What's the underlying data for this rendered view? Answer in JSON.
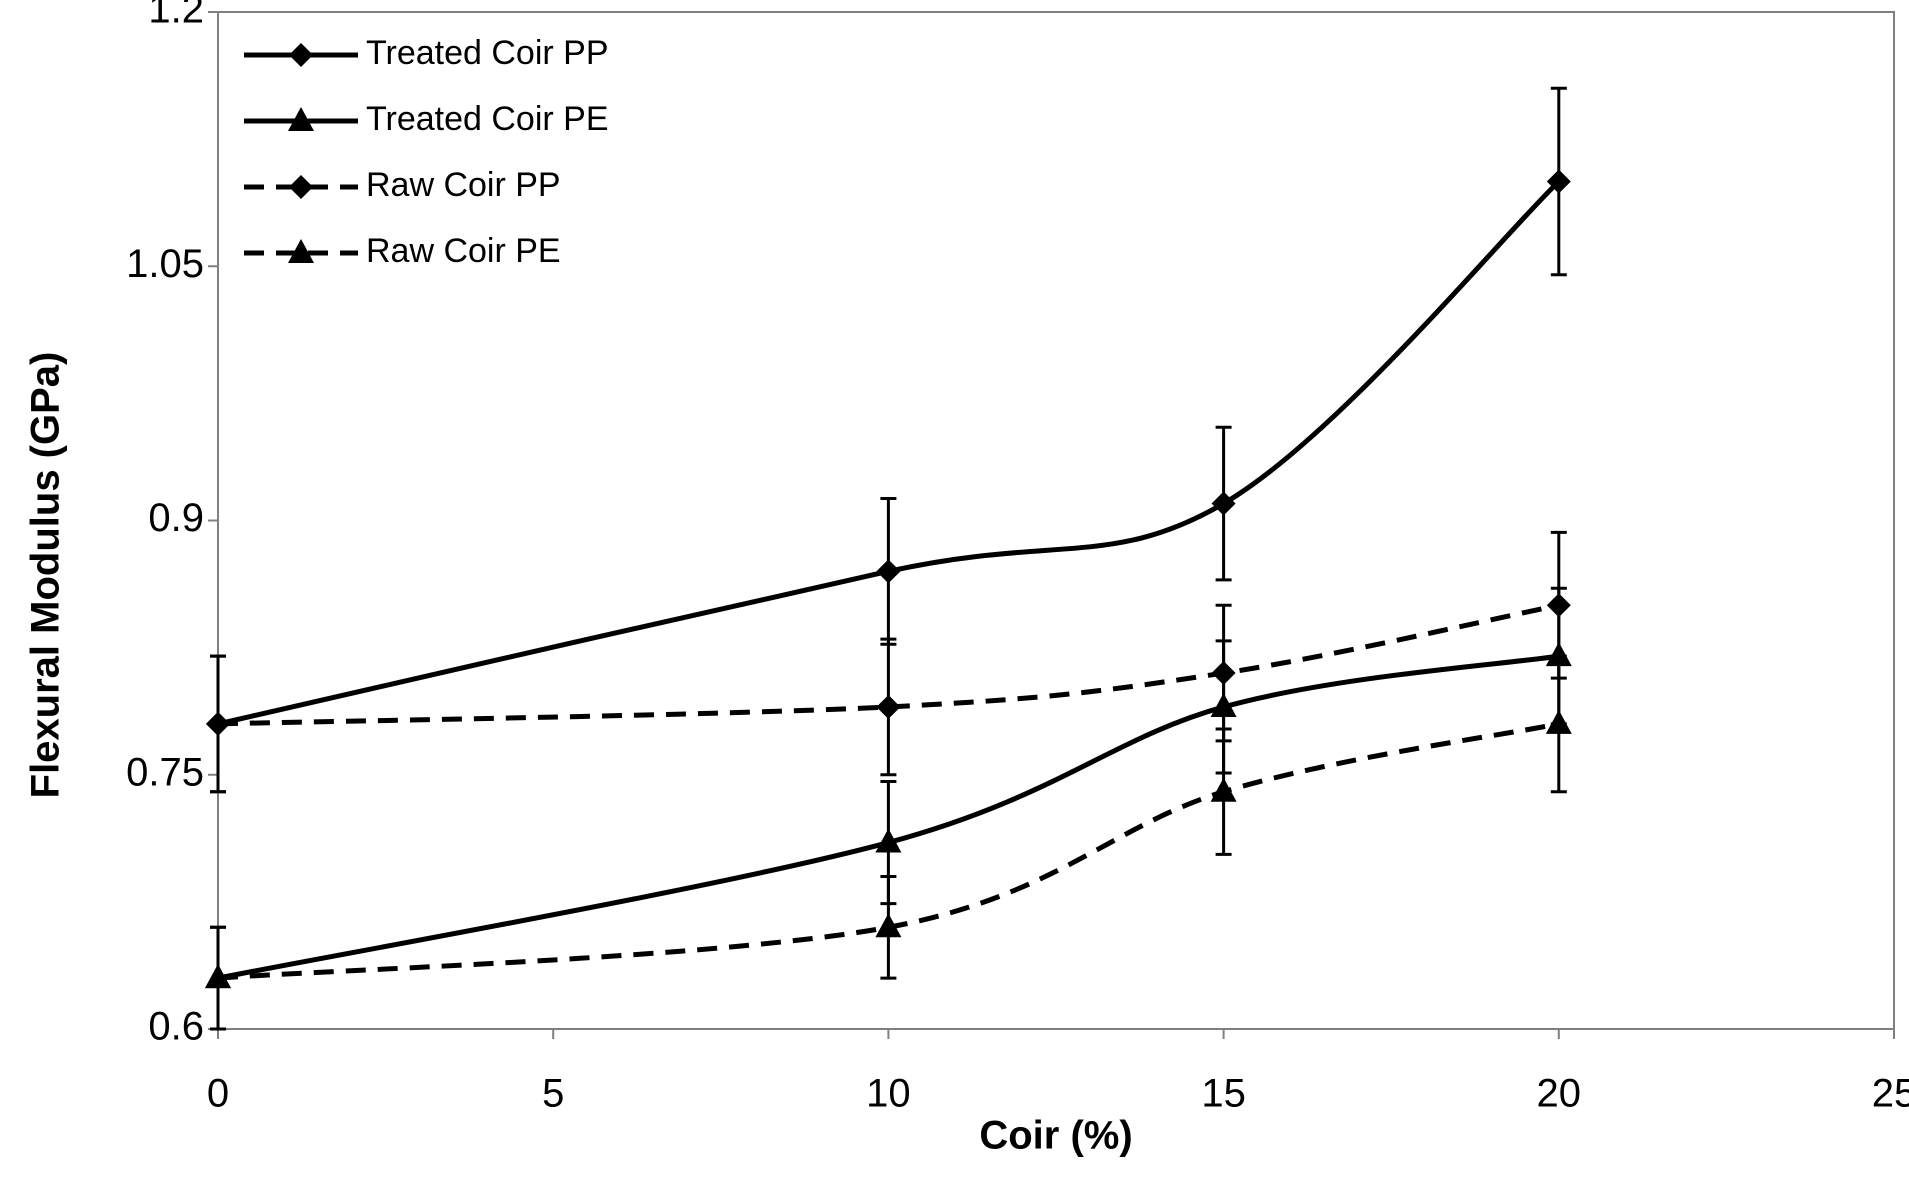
{
  "chart_data": {
    "type": "line",
    "x_label": "Coir (%)",
    "y_label": "Flexural Modulus (GPa)",
    "x": [
      0,
      10,
      15,
      20
    ],
    "series": [
      {
        "name": "Treated Coir PP",
        "color": "#000000",
        "dash": false,
        "marker": "diamond",
        "values": [
          0.78,
          0.87,
          0.91,
          1.1
        ],
        "errors": [
          0.04,
          0.043,
          0.045,
          0.055
        ]
      },
      {
        "name": "Treated Coir PE",
        "color": "#000000",
        "dash": false,
        "marker": "triangle",
        "values": [
          0.63,
          0.71,
          0.79,
          0.82
        ],
        "errors": [
          0.03,
          0.036,
          0.039,
          0.04
        ]
      },
      {
        "name": "Raw Coir PP",
        "color": "#000000",
        "dash": true,
        "marker": "diamond",
        "values": [
          0.78,
          0.79,
          0.81,
          0.85
        ],
        "errors": [
          0.04,
          0.04,
          0.04,
          0.043
        ]
      },
      {
        "name": "Raw Coir PE",
        "color": "#000000",
        "dash": true,
        "marker": "triangle",
        "values": [
          0.63,
          0.66,
          0.74,
          0.78
        ],
        "errors": [
          0.03,
          0.03,
          0.037,
          0.04
        ]
      }
    ],
    "xlim": [
      0,
      25
    ],
    "xticks": [
      0,
      5,
      10,
      15,
      20,
      25
    ],
    "ylim": [
      0.6,
      1.2
    ],
    "yticks": [
      0.6,
      0.75,
      0.9,
      1.05,
      1.2
    ],
    "grid": false,
    "smooth": true,
    "legend": "top-left"
  }
}
